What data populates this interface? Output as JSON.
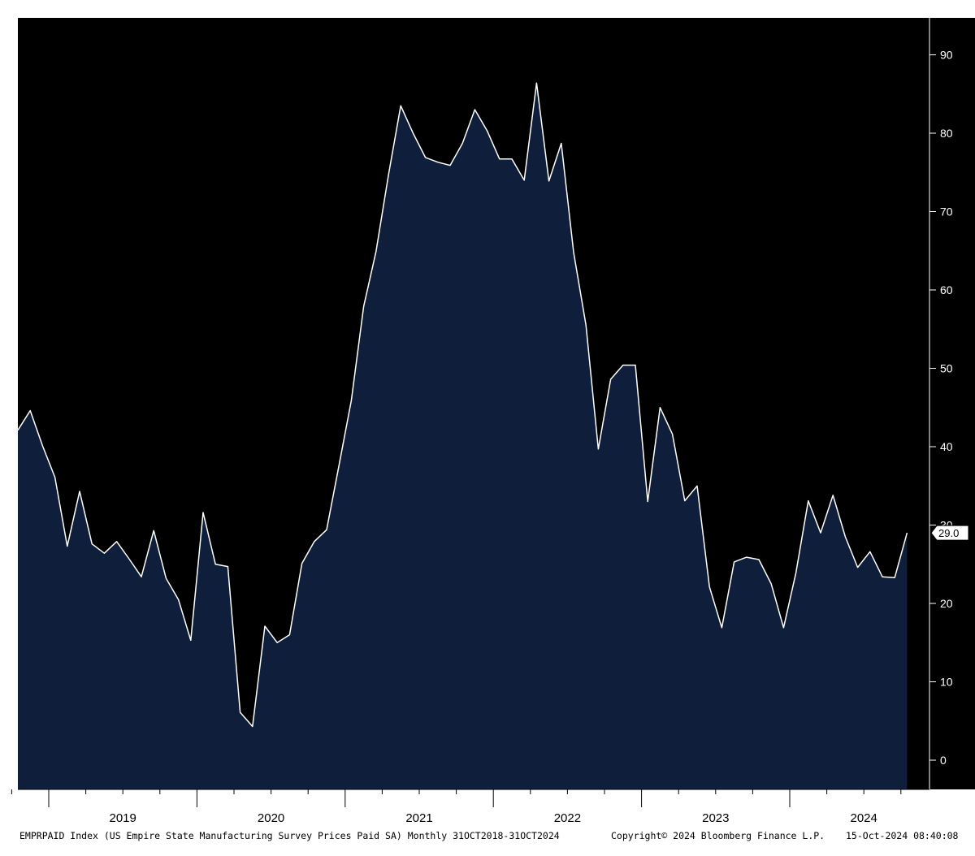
{
  "chart_data": {
    "type": "area",
    "series": [
      {
        "x": [
          "2018-10",
          "2018-11",
          "2018-12",
          "2019-01",
          "2019-02",
          "2019-03",
          "2019-04",
          "2019-05",
          "2019-06",
          "2019-07",
          "2019-08",
          "2019-09",
          "2019-10",
          "2019-11",
          "2019-12",
          "2020-01",
          "2020-02",
          "2020-03",
          "2020-04",
          "2020-05",
          "2020-06",
          "2020-07",
          "2020-08",
          "2020-09",
          "2020-10",
          "2020-11",
          "2020-12",
          "2021-01",
          "2021-02",
          "2021-03",
          "2021-04",
          "2021-05",
          "2021-06",
          "2021-07",
          "2021-08",
          "2021-09",
          "2021-10",
          "2021-11",
          "2021-12",
          "2022-01",
          "2022-02",
          "2022-03",
          "2022-04",
          "2022-05",
          "2022-06",
          "2022-07",
          "2022-08",
          "2022-09",
          "2022-10",
          "2022-11",
          "2022-12",
          "2023-01",
          "2023-02",
          "2023-03",
          "2023-04",
          "2023-05",
          "2023-06",
          "2023-07",
          "2023-08",
          "2023-09",
          "2023-10",
          "2023-11",
          "2023-12",
          "2024-01",
          "2024-02",
          "2024-03",
          "2024-04",
          "2024-05",
          "2024-06",
          "2024-07",
          "2024-08",
          "2024-09",
          "2024-10"
        ],
        "values": [
          42.1,
          44.6,
          40.1,
          36.1,
          27.3,
          34.3,
          27.6,
          26.4,
          27.9,
          25.7,
          23.4,
          29.3,
          23.2,
          20.5,
          15.3,
          31.6,
          25.0,
          24.7,
          6.1,
          4.3,
          17.1,
          15.0,
          16.0,
          25.1,
          27.9,
          29.4,
          37.6,
          45.9,
          57.9,
          64.9,
          74.6,
          83.5,
          80.0,
          76.9,
          76.3,
          75.9,
          78.7,
          83.0,
          80.3,
          76.7,
          76.7,
          74.0,
          86.4,
          73.9,
          78.7,
          64.8,
          55.5,
          39.7,
          48.6,
          50.4,
          50.4,
          33.0,
          45.0,
          41.6,
          33.1,
          35.0,
          22.1,
          16.9,
          25.3,
          25.9,
          25.6,
          22.5,
          16.9,
          23.9,
          33.1,
          29.0,
          33.8,
          28.5,
          24.6,
          26.6,
          23.4,
          23.3,
          29.0
        ]
      }
    ],
    "ylim": [
      -3.5,
      95.5
    ],
    "yticks": [
      0,
      10,
      20,
      30,
      40,
      50,
      60,
      70,
      80,
      90
    ],
    "ytick_labels": [
      "0",
      "10",
      "20",
      "30",
      "40",
      "50",
      "60",
      "70",
      "80",
      "90"
    ],
    "year_labels": [
      "2019",
      "2020",
      "2021",
      "2022",
      "2023",
      "2024"
    ],
    "last_value_label": "29.0",
    "grid": false,
    "colors": {
      "plot_bg": "#000000",
      "fill": "#0f1f3b",
      "line": "#ffffff",
      "axis_line": "#ffffff",
      "axis_text": "#ffffff",
      "xaxis_text": "#000000"
    }
  },
  "footer": {
    "left": "EMPRPAID Index (US Empire State Manufacturing Survey Prices Paid SA)  Monthly 31OCT2018-31OCT2024",
    "copyright": "Copyright© 2024 Bloomberg Finance L.P.",
    "timestamp": "15-Oct-2024 08:40:08"
  }
}
